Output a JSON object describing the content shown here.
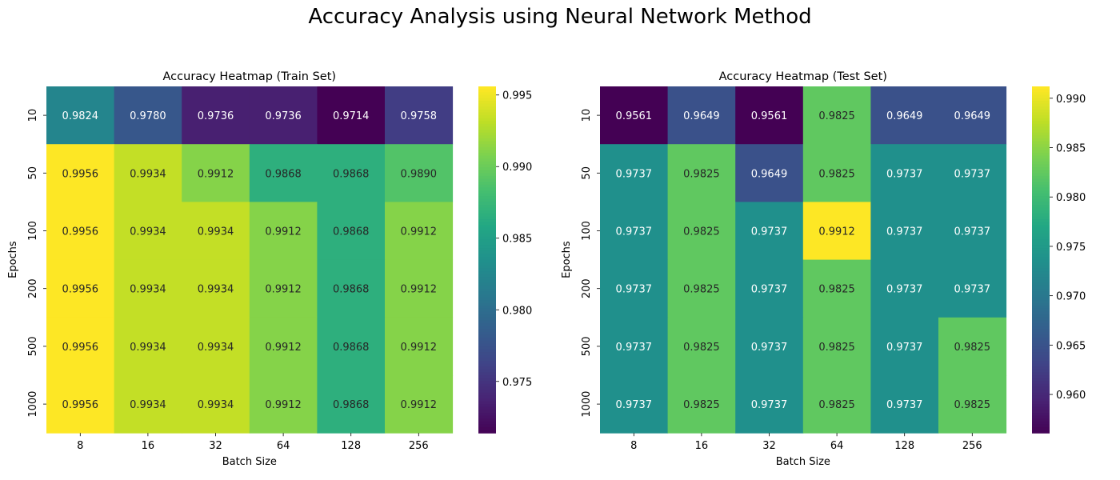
{
  "figure": {
    "title": "Accuracy Analysis using Neural Network Method"
  },
  "chart_data": [
    {
      "type": "heatmap",
      "title": "Accuracy Heatmap (Train Set)",
      "xlabel": "Batch Size",
      "ylabel": "Epochs",
      "x_categories": [
        "8",
        "16",
        "32",
        "64",
        "128",
        "256"
      ],
      "y_categories": [
        "10",
        "50",
        "100",
        "200",
        "500",
        "1000"
      ],
      "values": [
        [
          0.9824,
          0.978,
          0.9736,
          0.9736,
          0.9714,
          0.9758
        ],
        [
          0.9956,
          0.9934,
          0.9912,
          0.9868,
          0.9868,
          0.989
        ],
        [
          0.9956,
          0.9934,
          0.9934,
          0.9912,
          0.9868,
          0.9912
        ],
        [
          0.9956,
          0.9934,
          0.9934,
          0.9912,
          0.9868,
          0.9912
        ],
        [
          0.9956,
          0.9934,
          0.9934,
          0.9912,
          0.9868,
          0.9912
        ],
        [
          0.9956,
          0.9934,
          0.9934,
          0.9912,
          0.9868,
          0.9912
        ]
      ],
      "colormap": "viridis",
      "color_range": [
        0.9714,
        0.9956
      ],
      "colorbar_ticks": [
        "0.975",
        "0.980",
        "0.985",
        "0.990",
        "0.995"
      ]
    },
    {
      "type": "heatmap",
      "title": "Accuracy Heatmap (Test Set)",
      "xlabel": "Batch Size",
      "ylabel": "Epochs",
      "x_categories": [
        "8",
        "16",
        "32",
        "64",
        "128",
        "256"
      ],
      "y_categories": [
        "10",
        "50",
        "100",
        "200",
        "500",
        "1000"
      ],
      "values": [
        [
          0.9561,
          0.9649,
          0.9561,
          0.9825,
          0.9649,
          0.9649
        ],
        [
          0.9737,
          0.9825,
          0.9649,
          0.9825,
          0.9737,
          0.9737
        ],
        [
          0.9737,
          0.9825,
          0.9737,
          0.9912,
          0.9737,
          0.9737
        ],
        [
          0.9737,
          0.9825,
          0.9737,
          0.9825,
          0.9737,
          0.9737
        ],
        [
          0.9737,
          0.9825,
          0.9737,
          0.9825,
          0.9737,
          0.9825
        ],
        [
          0.9737,
          0.9825,
          0.9737,
          0.9825,
          0.9737,
          0.9825
        ]
      ],
      "colormap": "viridis",
      "color_range": [
        0.9561,
        0.9912
      ],
      "colorbar_ticks": [
        "0.960",
        "0.965",
        "0.970",
        "0.975",
        "0.980",
        "0.985",
        "0.990"
      ]
    }
  ]
}
